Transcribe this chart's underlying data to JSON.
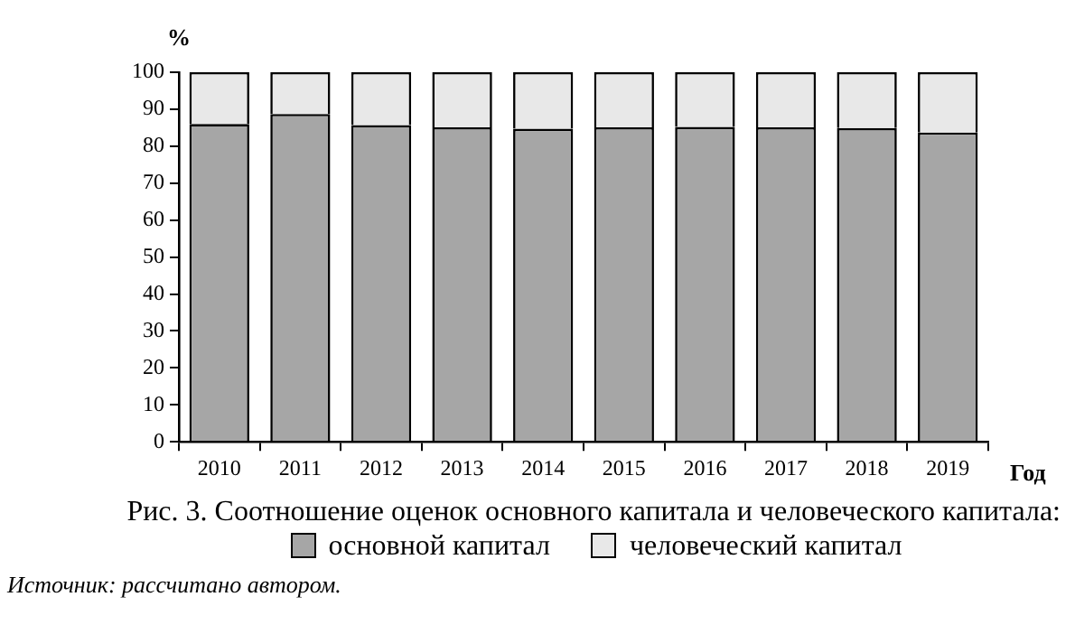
{
  "chart_data": {
    "type": "bar",
    "title": "Рис. 3. Соотношение оценок основного капитала и человеческого капитала:",
    "xlabel": "Год",
    "ylabel": "%",
    "categories": [
      "2010",
      "2011",
      "2012",
      "2013",
      "2014",
      "2015",
      "2016",
      "2017",
      "2018",
      "2019"
    ],
    "series": [
      {
        "name": "основной капитал",
        "color": "#a6a6a6",
        "values": [
          86,
          88.7,
          85.7,
          85.1,
          84.7,
          85.1,
          85.2,
          85.1,
          84.9,
          83.7
        ]
      },
      {
        "name": "человеческий капитал",
        "color": "#e8e8e8",
        "values": [
          14,
          11.3,
          14.3,
          14.9,
          15.3,
          14.9,
          14.8,
          14.9,
          15.1,
          16.3
        ]
      }
    ],
    "stacked": true,
    "ylim": [
      0,
      100
    ],
    "yticks": [
      0,
      10,
      20,
      30,
      40,
      50,
      60,
      70,
      80,
      90,
      100
    ],
    "grid": false,
    "legend": "bottom",
    "annotations": [
      "Источник: рассчитано автором."
    ]
  }
}
